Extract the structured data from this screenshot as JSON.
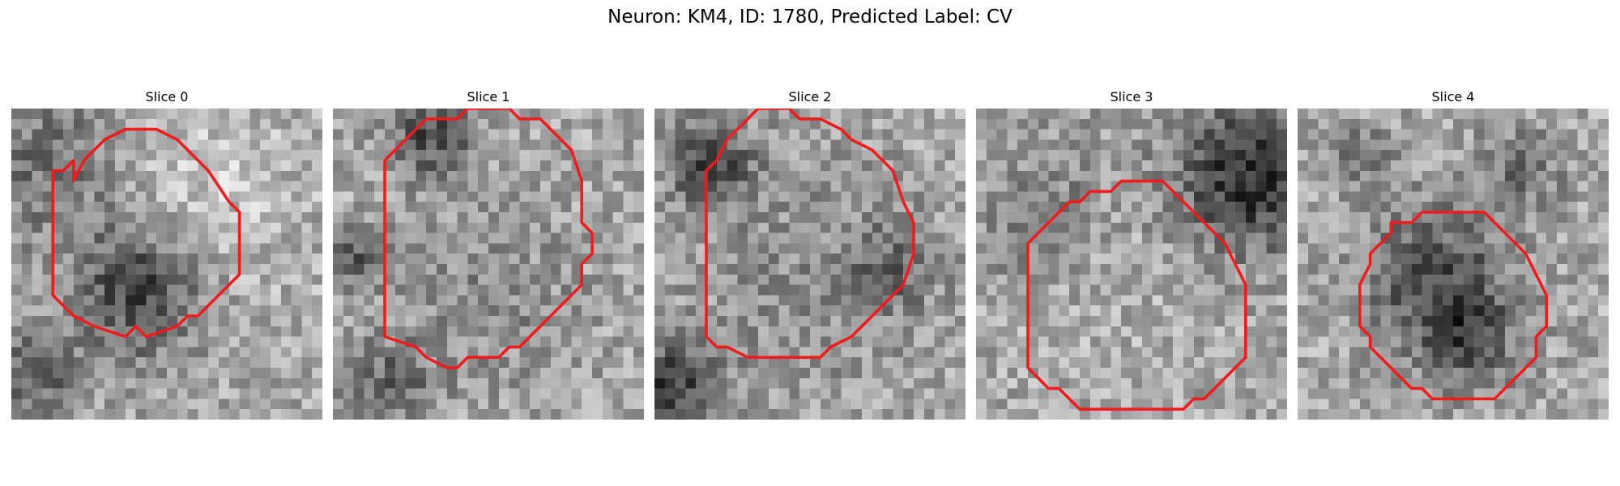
{
  "figure": {
    "title": "Neuron: KM4, ID: 1780, Predicted Label: CV"
  },
  "colors": {
    "contour": "#ee1c1c"
  },
  "panels": [
    {
      "title": "Slice 0",
      "image_description": "grayscale noisy microscopy patch with a round cell outlined in red; dark region inside lower part"
    },
    {
      "title": "Slice 1",
      "image_description": "grayscale noisy microscopy patch with a large round cell outlined in red"
    },
    {
      "title": "Slice 2",
      "image_description": "grayscale noisy microscopy patch with a round cell outlined in red"
    },
    {
      "title": "Slice 3",
      "image_description": "grayscale noisy microscopy patch with a cell outlined in red, dark region upper right"
    },
    {
      "title": "Slice 4",
      "image_description": "grayscale noisy microscopy patch with a smaller cell outlined in red"
    }
  ]
}
